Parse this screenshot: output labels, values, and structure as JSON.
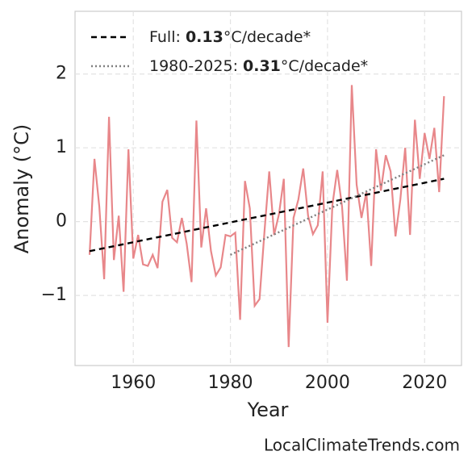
{
  "chart_data": {
    "type": "line",
    "xlabel": "Year",
    "ylabel": "Anomaly (°C)",
    "source": "LocalClimateTrends.com",
    "x": [
      1951,
      1952,
      1953,
      1954,
      1955,
      1956,
      1957,
      1958,
      1959,
      1960,
      1961,
      1962,
      1963,
      1964,
      1965,
      1966,
      1967,
      1968,
      1969,
      1970,
      1971,
      1972,
      1973,
      1974,
      1975,
      1976,
      1977,
      1978,
      1979,
      1980,
      1981,
      1982,
      1983,
      1984,
      1985,
      1986,
      1987,
      1988,
      1989,
      1990,
      1991,
      1992,
      1993,
      1994,
      1995,
      1996,
      1997,
      1998,
      1999,
      2000,
      2001,
      2002,
      2003,
      2004,
      2005,
      2006,
      2007,
      2008,
      2009,
      2010,
      2011,
      2012,
      2013,
      2014,
      2015,
      2016,
      2017,
      2018,
      2019,
      2020,
      2021,
      2022,
      2023,
      2024
    ],
    "series": [
      {
        "color": "#e8878a",
        "values": [
          -0.45,
          0.85,
          0.2,
          -0.78,
          1.42,
          -0.52,
          0.08,
          -0.95,
          0.98,
          -0.5,
          -0.18,
          -0.58,
          -0.6,
          -0.45,
          -0.63,
          0.27,
          0.43,
          -0.22,
          -0.28,
          0.05,
          -0.3,
          -0.82,
          1.37,
          -0.35,
          0.18,
          -0.4,
          -0.73,
          -0.62,
          -0.18,
          -0.2,
          -0.15,
          -1.33,
          0.55,
          0.18,
          -1.14,
          -1.05,
          -0.15,
          0.68,
          -0.18,
          0.1,
          0.58,
          -1.7,
          0.05,
          0.3,
          0.72,
          0.08,
          -0.17,
          -0.05,
          0.68,
          -1.37,
          0.22,
          0.7,
          0.2,
          -0.8,
          1.85,
          0.5,
          0.05,
          0.4,
          -0.6,
          0.98,
          0.42,
          0.9,
          0.68,
          -0.2,
          0.3,
          1.0,
          -0.18,
          1.38,
          0.58,
          1.2,
          0.85,
          1.27,
          0.4,
          1.7
        ]
      }
    ],
    "trends": [
      {
        "name": "Full: ",
        "rate": 0.13,
        "unit": "°C/decade*",
        "color": "#000000",
        "dash": "7 5",
        "x": [
          1951,
          2024
        ],
        "values": [
          -0.4,
          0.58
        ]
      },
      {
        "name": "1980-2025: ",
        "rate": 0.31,
        "unit": "°C/decade*",
        "color": "#808080",
        "dash": "2 3",
        "x": [
          1980,
          2024
        ],
        "values": [
          -0.45,
          0.9
        ]
      }
    ],
    "xlim": [
      1948,
      2027.6
    ],
    "ylim": [
      -1.95,
      2.85
    ],
    "xticks": [
      1960,
      1980,
      2000,
      2020
    ],
    "yticks": [
      {
        "value": -1,
        "label": "−1"
      },
      0,
      1,
      2
    ],
    "grid": true,
    "legend": "upper left"
  }
}
